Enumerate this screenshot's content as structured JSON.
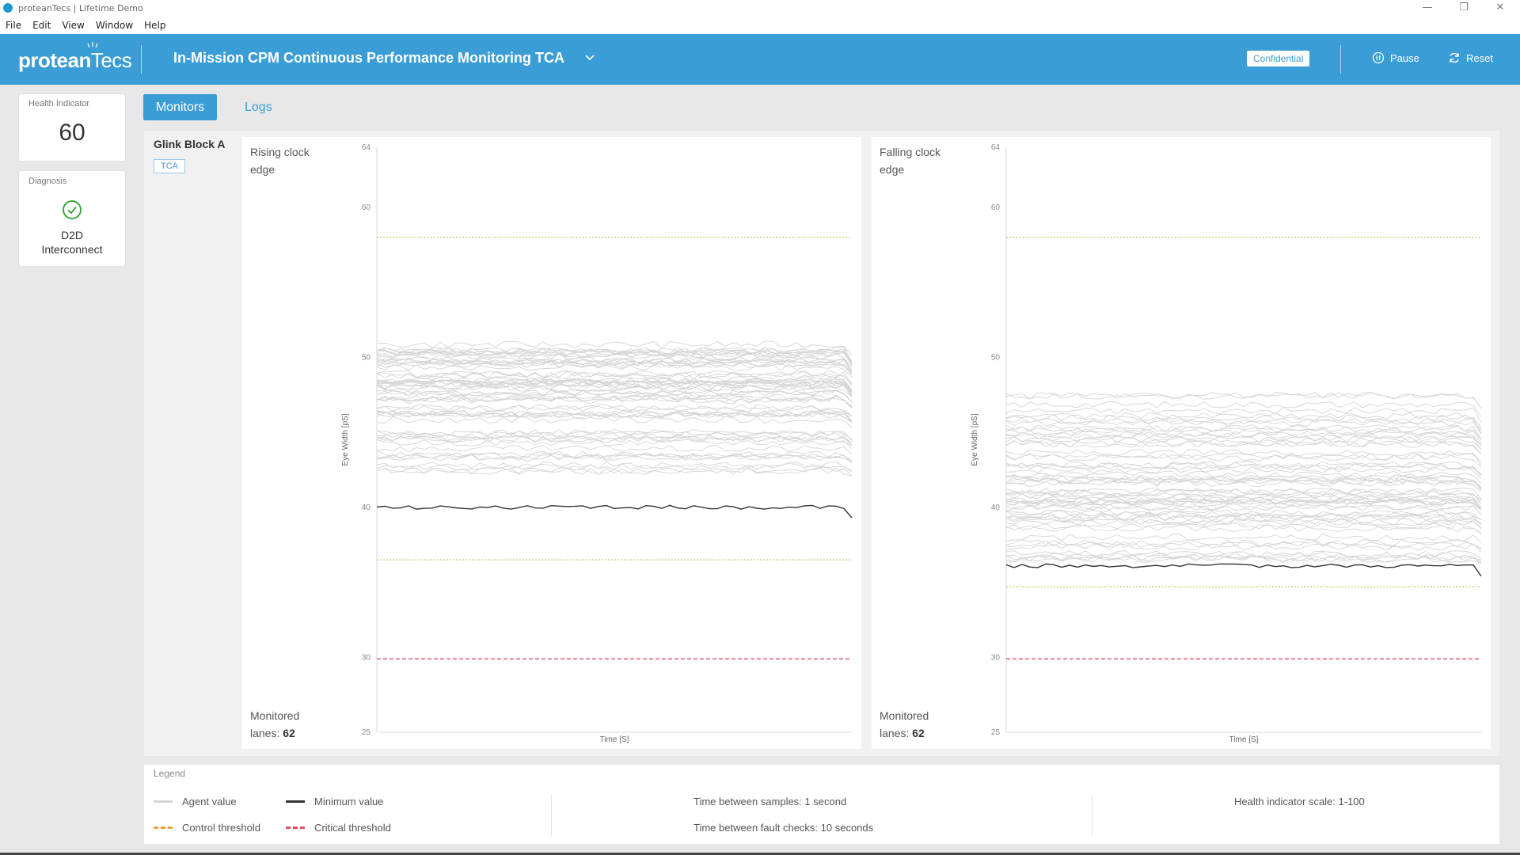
{
  "window": {
    "title": "proteanTecs | Lifetime Demo",
    "controls": {
      "minimize": "—",
      "restore": "❐",
      "close": "✕"
    }
  },
  "menu": [
    "File",
    "Edit",
    "View",
    "Window",
    "Help"
  ],
  "header": {
    "logo_prefix": "protean",
    "logo_suffix": "Tecs",
    "title": "In-Mission CPM Continuous Performance Monitoring TCA",
    "confidential": "Confidential",
    "pause_label": "Pause",
    "reset_label": "Reset",
    "bg_color": "#3a9dd6"
  },
  "health": {
    "label": "Health Indicator",
    "value": "60"
  },
  "diagnosis": {
    "label": "Diagnosis",
    "value_line1": "D2D",
    "value_line2": "Interconnect",
    "status_color": "#3aa843",
    "icon": "check-circle-icon"
  },
  "tabs": {
    "monitors": "Monitors",
    "logs": "Logs",
    "active": "monitors"
  },
  "block": {
    "title": "Glink Block A",
    "tag": "TCA"
  },
  "charts": [
    {
      "title_line1": "Rising clock",
      "title_line2": "edge",
      "foot_line1": "Monitored",
      "foot_prefix": "lanes: ",
      "foot_value": "62"
    },
    {
      "title_line1": "Falling clock",
      "title_line2": "edge",
      "foot_line1": "Monitored",
      "foot_prefix": "lanes: ",
      "foot_value": "62"
    }
  ],
  "chart_data": [
    {
      "type": "line",
      "title": "Rising clock edge",
      "xlabel": "Time [S]",
      "ylabel": "Eye Width [pS]",
      "y_ticks": [
        64,
        60,
        50,
        40,
        30,
        25
      ],
      "ylim": [
        25,
        64
      ],
      "grid": false,
      "agent_band": [
        42,
        51
      ],
      "agent_series_count": 62,
      "minimum_value": 40,
      "control_threshold_upper": 58,
      "control_threshold_lower": 36.5,
      "critical_threshold": 29.9
    },
    {
      "type": "line",
      "title": "Falling clock edge",
      "xlabel": "Time [S]",
      "ylabel": "Eye Width [pS]",
      "y_ticks": [
        64,
        60,
        50,
        40,
        30,
        25
      ],
      "ylim": [
        25,
        64
      ],
      "grid": false,
      "agent_band": [
        36.5,
        47.5
      ],
      "agent_series_count": 62,
      "minimum_value": 36.1,
      "control_threshold_upper": 58,
      "control_threshold_lower": 34.7,
      "critical_threshold": 29.9
    }
  ],
  "legend": {
    "label": "Legend",
    "agent_value": "Agent value",
    "minimum_value": "Minimum value",
    "control_threshold": "Control threshold",
    "critical_threshold": "Critical threshold",
    "samples": "Time between samples: 1 second",
    "fault_checks": "Time between fault checks: 10 seconds",
    "scale": "Health indicator scale: 1-100",
    "colors": {
      "agent": "#d4d4d4",
      "minimum": "#333333",
      "control": "#e8a33b",
      "critical": "#e05060",
      "control_line": "#a8c44a"
    }
  }
}
